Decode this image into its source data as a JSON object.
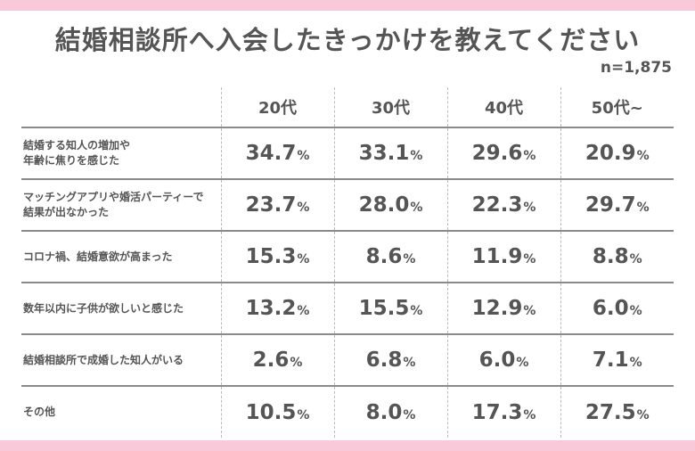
{
  "title": "結婚相談所へ入会したきっかけを教えてください",
  "sample_size": "n=1,875",
  "colors": {
    "band": "#f9c9da",
    "text": "#555555"
  },
  "chart_data": {
    "type": "table",
    "columns": [
      "20代",
      "30代",
      "40代",
      "50代~"
    ],
    "unit": "%",
    "rows": [
      {
        "label": "結婚する知人の増加や\n年齢に焦りを感じた",
        "values": [
          "34.7",
          "33.1",
          "29.6",
          "20.9"
        ]
      },
      {
        "label": "マッチングアプリや婚活パーティーで\n結果が出なかった",
        "values": [
          "23.7",
          "28.0",
          "22.3",
          "29.7"
        ]
      },
      {
        "label": "コロナ禍、結婚意欲が高まった",
        "values": [
          "15.3",
          "8.6",
          "11.9",
          "8.8"
        ]
      },
      {
        "label": "数年以内に子供が欲しいと感じた",
        "values": [
          "13.2",
          "15.5",
          "12.9",
          "6.0"
        ]
      },
      {
        "label": "結婚相談所で成婚した知人がいる",
        "values": [
          "2.6",
          "6.8",
          "6.0",
          "7.1"
        ]
      },
      {
        "label": "その他",
        "values": [
          "10.5",
          "8.0",
          "17.3",
          "27.5"
        ]
      }
    ]
  }
}
